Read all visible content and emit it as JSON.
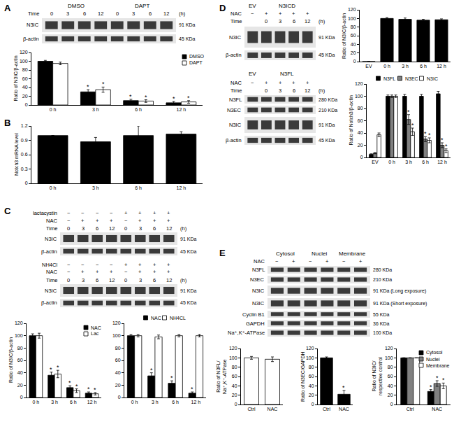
{
  "panel_labels": [
    "A",
    "B",
    "C",
    "D",
    "E"
  ],
  "blots": [
    {
      "group_row": [
        "DMSO",
        null,
        null,
        null,
        "DAPT",
        null,
        null,
        null
      ],
      "header_rows": [
        {
          "label": "Time",
          "cells": [
            "0",
            "3",
            "6",
            "12",
            "0",
            "3",
            "6",
            "12"
          ],
          "suffix": "(h)"
        }
      ],
      "bands": [
        {
          "label": "N3IC",
          "size": "91 KDa"
        },
        {
          "label": "β-actin",
          "size": "45 KDa"
        }
      ]
    },
    {
      "header_rows": [
        {
          "label": "lactacystin",
          "cells": [
            "−",
            "−",
            "−",
            "−",
            "+",
            "+",
            "+",
            "+"
          ]
        },
        {
          "label": "NAC",
          "cells": [
            "−",
            "+",
            "+",
            "+",
            "−",
            "+",
            "+",
            "+"
          ]
        },
        {
          "label": "Time",
          "cells": [
            "0",
            "3",
            "6",
            "12",
            "0",
            "3",
            "6",
            "12"
          ],
          "suffix": "(h)"
        }
      ],
      "bands": [
        {
          "label": "N3IC",
          "size": "91 KDa"
        },
        {
          "label": "β-actin",
          "size": "45 KDa"
        }
      ]
    },
    {
      "header_rows": [
        {
          "label": "NH4Cl",
          "cells": [
            "−",
            "−",
            "−",
            "−",
            "+",
            "+",
            "+",
            "+"
          ]
        },
        {
          "label": "NAC",
          "cells": [
            "−",
            "+",
            "+",
            "+",
            "−",
            "+",
            "+",
            "+"
          ]
        },
        {
          "label": "Time",
          "cells": [
            "0",
            "3",
            "6",
            "12",
            "0",
            "3",
            "6",
            "12"
          ],
          "suffix": "(h)"
        }
      ],
      "bands": [
        {
          "label": "N3IC",
          "size": "91 KDa"
        },
        {
          "label": "β-actin",
          "size": "45 KDa"
        }
      ]
    },
    {
      "group_row": [
        "EV",
        "N3ICD",
        null,
        null,
        null
      ],
      "header_rows": [
        {
          "label": "NAC",
          "cells": [
            "−",
            "+",
            "+",
            "+",
            "+"
          ]
        },
        {
          "label": "Time",
          "cells": [
            null,
            "0",
            "3",
            "6",
            "12"
          ],
          "suffix": "(h)"
        }
      ],
      "bands": [
        {
          "label": "N3IC",
          "size": "91 KDa"
        },
        {
          "label": "β-actin",
          "size": "45 KDa"
        }
      ]
    },
    {
      "group_row": [
        "EV",
        "N3FL",
        null,
        null,
        null
      ],
      "header_rows": [
        {
          "label": "NAC",
          "cells": [
            "−",
            "+",
            "+",
            "+",
            "+"
          ]
        },
        {
          "label": "Time",
          "cells": [
            null,
            "0",
            "3",
            "6",
            "12"
          ],
          "suffix": "(h)"
        }
      ],
      "bands": [
        {
          "label": "N3FL",
          "size": "280 KDa"
        },
        {
          "label": "N3EC",
          "size": "210 KDa"
        },
        {
          "label": "N3IC",
          "size": "91 KDa"
        },
        {
          "label": "β-actin",
          "size": "45 KDa"
        }
      ]
    },
    {
      "group_row": [
        "Cytosol",
        null,
        "Nuclei",
        null,
        "Membrane",
        null
      ],
      "header_rows": [
        {
          "label": "NAC",
          "cells": [
            "−",
            "+",
            "−",
            "+",
            "−",
            "+"
          ]
        }
      ],
      "bands": [
        {
          "label": "N3FL",
          "size": "280 KDa"
        },
        {
          "label": "N3EC",
          "size": "210 KDa"
        },
        {
          "label": "N3IC",
          "size": "91 KDa (Long exposure)"
        },
        {
          "label": "N3IC",
          "size": "91 KDa (Short exposure)"
        },
        {
          "label": "Cyclin B1",
          "size": "55 KDa"
        },
        {
          "label": "GAPDH",
          "size": "36 KDa"
        },
        {
          "label": "Na⁺,K⁺-ATPase",
          "size": "100 KDa"
        }
      ]
    }
  ],
  "chart_data": [
    {
      "type": "bar",
      "ylabel": "Ratio of N3IC/β-actin",
      "categories": [
        "0 h",
        "3 h",
        "6 h",
        "12 h"
      ],
      "series": [
        {
          "name": "DMSO",
          "color": "#000000",
          "values": [
            100,
            30,
            10,
            5
          ],
          "errors": [
            2,
            5,
            3,
            3
          ],
          "significant": [
            false,
            true,
            true,
            true
          ]
        },
        {
          "name": "DAPT",
          "color": "#ffffff",
          "values": [
            95,
            35,
            9,
            7
          ],
          "errors": [
            3,
            6,
            3,
            3
          ],
          "significant": [
            false,
            true,
            true,
            true
          ]
        }
      ],
      "ylim": [
        0,
        120
      ],
      "yticks": [
        0,
        20,
        40,
        60,
        80,
        100,
        120
      ],
      "grid": false,
      "legend": "upper right",
      "significance_label": "*"
    },
    {
      "type": "bar",
      "ylabel": "Notch3 mRNA level",
      "categories": [
        "0 h",
        "3 h",
        "6 h",
        "12 h"
      ],
      "series": [
        {
          "color": "#000000",
          "values": [
            1.0,
            0.87,
            1.0,
            1.03
          ],
          "errors": [
            0,
            0.09,
            0.2,
            0.05
          ]
        }
      ],
      "ylim": [
        0,
        1.2
      ],
      "yticks": [
        0,
        0.3,
        0.6,
        0.9,
        1.2
      ],
      "grid": false
    },
    {
      "type": "bar",
      "ylabel": "Ratio of N3IC/β-actin",
      "categories": [
        "0 h",
        "3 h",
        "6 h",
        "12 h"
      ],
      "series": [
        {
          "name": "NAC",
          "color": "#000000",
          "values": [
            100,
            36,
            16,
            7
          ],
          "errors": [
            3,
            5,
            3,
            2
          ],
          "significant": [
            false,
            true,
            true,
            true
          ]
        },
        {
          "name": "Lac",
          "color": "#ffffff",
          "values": [
            100,
            38,
            11,
            6
          ],
          "errors": [
            4,
            6,
            3,
            2
          ],
          "significant": [
            false,
            true,
            true,
            true
          ]
        }
      ],
      "ylim": [
        0,
        120
      ],
      "yticks": [
        0,
        20,
        40,
        60,
        80,
        100,
        120
      ],
      "grid": false,
      "legend": "upper right",
      "significance_label": "*"
    },
    {
      "type": "bar",
      "categories": [
        "0 h",
        "3 h",
        "6 h",
        "12 h"
      ],
      "series": [
        {
          "name": "NAC",
          "color": "#000000",
          "values": [
            100,
            35,
            23,
            7
          ],
          "errors": [
            2,
            5,
            4,
            2
          ],
          "significant": [
            false,
            true,
            true,
            true
          ]
        },
        {
          "name": "NH4CL",
          "color": "#ffffff",
          "values": [
            100,
            98,
            100,
            100
          ],
          "errors": [
            2,
            3,
            2,
            2
          ]
        }
      ],
      "ylim": [
        0,
        120
      ],
      "yticks": [
        0,
        20,
        40,
        60,
        80,
        100,
        120
      ],
      "grid": false,
      "legend": "top",
      "significance_label": "*"
    },
    {
      "type": "bar",
      "ylabel": "Ratio of N3IC/β-actin",
      "categories": [
        "EV",
        "0 h",
        "3 h",
        "6 h",
        "12 h"
      ],
      "series": [
        {
          "color": "#000000",
          "values": [
            0,
            100,
            98,
            96,
            97
          ],
          "errors": [
            0,
            2,
            3,
            2,
            2
          ]
        }
      ],
      "ylim": [
        0,
        120
      ],
      "yticks": [
        0,
        20,
        40,
        60,
        80,
        100,
        120
      ],
      "grid": false
    },
    {
      "type": "bar",
      "ylabel": "Ratio of Notch3/β-actin",
      "categories": [
        "EV",
        "0 h",
        "3 h",
        "6 h",
        "12 h"
      ],
      "series": [
        {
          "name": "N3FL",
          "color": "#000000",
          "values": [
            5,
            100,
            100,
            100,
            104
          ],
          "errors": [
            1,
            2,
            3,
            3,
            4
          ]
        },
        {
          "name": "N3EC",
          "color": "#808080",
          "values": [
            7,
            100,
            62,
            30,
            20
          ],
          "errors": [
            1,
            2,
            8,
            4,
            4
          ],
          "significant": [
            false,
            false,
            true,
            true,
            true
          ]
        },
        {
          "name": "N3IC",
          "color": "#ffffff",
          "values": [
            37,
            100,
            42,
            28,
            11
          ],
          "errors": [
            3,
            2,
            6,
            4,
            3
          ],
          "significant": [
            false,
            false,
            true,
            true,
            true
          ]
        }
      ],
      "ylim": [
        0,
        120
      ],
      "yticks": [
        0,
        20,
        40,
        60,
        80,
        100,
        120
      ],
      "grid": false,
      "legend": "top",
      "significance_label": "*"
    },
    {
      "type": "bar",
      "ylabel": [
        "Ratio of N3FL/",
        "Na⁺,K⁺-ATPase"
      ],
      "categories": [
        "Ctrl",
        "NAC"
      ],
      "series": [
        {
          "color": "#ffffff",
          "values": [
            100,
            97
          ],
          "errors": [
            3,
            5
          ]
        }
      ],
      "ylim": [
        0,
        120
      ],
      "yticks": [
        0,
        20,
        40,
        60,
        80,
        100,
        120
      ],
      "grid": false
    },
    {
      "type": "bar",
      "ylabel": "Ratio of N3EC/GAPDH",
      "categories": [
        "Ctrl",
        "NAC"
      ],
      "series": [
        {
          "color": "#000000",
          "values": [
            100,
            22
          ],
          "errors": [
            2,
            8
          ],
          "significant": [
            false,
            true
          ]
        }
      ],
      "ylim": [
        0,
        120
      ],
      "yticks": [
        0,
        20,
        40,
        60,
        80,
        100,
        120
      ],
      "grid": false,
      "significance_label": "*"
    },
    {
      "type": "bar",
      "ylabel": [
        "Ratio of N3IC/",
        "respective control"
      ],
      "categories": [
        "Ctrl",
        "NAC"
      ],
      "series": [
        {
          "name": "Cytosol",
          "color": "#000000",
          "values": [
            100,
            28
          ],
          "errors": [
            0,
            4
          ],
          "significant": [
            false,
            true
          ]
        },
        {
          "name": "Nuclei",
          "color": "#808080",
          "values": [
            100,
            45
          ],
          "errors": [
            0,
            6
          ],
          "significant": [
            false,
            true
          ]
        },
        {
          "name": "Membrane",
          "color": "#ffffff",
          "values": [
            100,
            40
          ],
          "errors": [
            0,
            6
          ],
          "significant": [
            false,
            true
          ]
        }
      ],
      "ylim": [
        0,
        120
      ],
      "yticks": [
        0,
        20,
        40,
        60,
        80,
        100,
        120
      ],
      "grid": false,
      "legend": "upper right",
      "significance_label": "*"
    }
  ]
}
